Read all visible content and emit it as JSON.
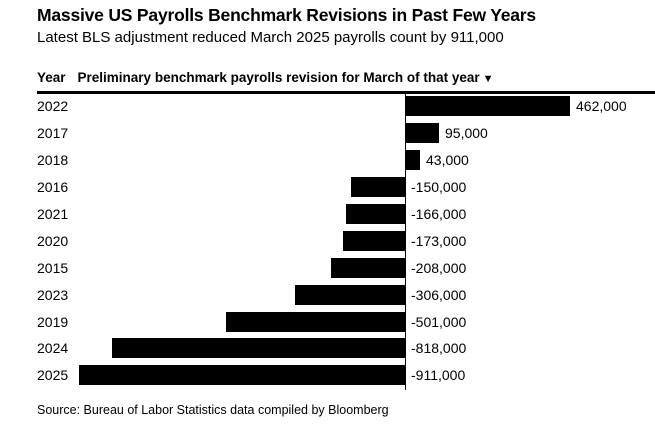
{
  "header": {
    "title": "Massive US Payrolls Benchmark Revisions in Past Few Years",
    "subtitle": "Latest BLS adjustment reduced March 2025 payrolls count by 911,000"
  },
  "table_header": {
    "year_label": "Year",
    "value_label": "Preliminary benchmark payrolls revision for March of that year",
    "sort_icon": "▼"
  },
  "chart_data": {
    "type": "bar",
    "orientation": "horizontal",
    "title": "Massive US Payrolls Benchmark Revisions in Past Few Years",
    "subtitle": "Latest BLS adjustment reduced March 2025 payrolls count by 911,000",
    "categories": [
      "2022",
      "2017",
      "2018",
      "2016",
      "2021",
      "2020",
      "2015",
      "2023",
      "2019",
      "2024",
      "2025"
    ],
    "values": [
      462000,
      95000,
      43000,
      -150000,
      -166000,
      -173000,
      -208000,
      -306000,
      -501000,
      -818000,
      -911000
    ],
    "labels": [
      "462,000",
      "95,000",
      "43,000",
      "-150,000",
      "-166,000",
      "-173,000",
      "-208,000",
      "-306,000",
      "-501,000",
      "-818,000",
      "-911,000"
    ],
    "value_axis_range": [
      -911000,
      462000
    ],
    "sort": "descending by value",
    "grid": false,
    "legend": false,
    "bar_color": "#000000",
    "source": "Source: Bureau of Labor Statistics data compiled by Bloomberg"
  },
  "source": "Source: Bureau of Labor Statistics data compiled by Bloomberg"
}
